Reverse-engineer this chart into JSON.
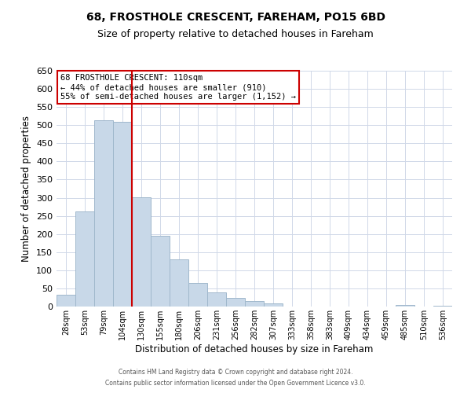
{
  "title": "68, FROSTHOLE CRESCENT, FAREHAM, PO15 6BD",
  "subtitle": "Size of property relative to detached houses in Fareham",
  "xlabel": "Distribution of detached houses by size in Fareham",
  "ylabel": "Number of detached properties",
  "bar_labels": [
    "28sqm",
    "53sqm",
    "79sqm",
    "104sqm",
    "130sqm",
    "155sqm",
    "180sqm",
    "206sqm",
    "231sqm",
    "256sqm",
    "282sqm",
    "307sqm",
    "333sqm",
    "358sqm",
    "383sqm",
    "409sqm",
    "434sqm",
    "459sqm",
    "485sqm",
    "510sqm",
    "536sqm"
  ],
  "bar_values": [
    33,
    263,
    513,
    510,
    302,
    196,
    131,
    65,
    40,
    24,
    15,
    8,
    0,
    0,
    0,
    0,
    0,
    0,
    4,
    0,
    3
  ],
  "bar_color": "#c8d8e8",
  "bar_edgecolor": "#a0b8cc",
  "property_line_x": 3.5,
  "property_line_color": "#cc0000",
  "ylim": [
    0,
    650
  ],
  "yticks": [
    0,
    50,
    100,
    150,
    200,
    250,
    300,
    350,
    400,
    450,
    500,
    550,
    600,
    650
  ],
  "annotation_title": "68 FROSTHOLE CRESCENT: 110sqm",
  "annotation_line1": "← 44% of detached houses are smaller (910)",
  "annotation_line2": "55% of semi-detached houses are larger (1,152) →",
  "annotation_box_edgecolor": "#cc0000",
  "footer1": "Contains HM Land Registry data © Crown copyright and database right 2024.",
  "footer2": "Contains public sector information licensed under the Open Government Licence v3.0.",
  "background_color": "#ffffff",
  "grid_color": "#d0d8e8"
}
